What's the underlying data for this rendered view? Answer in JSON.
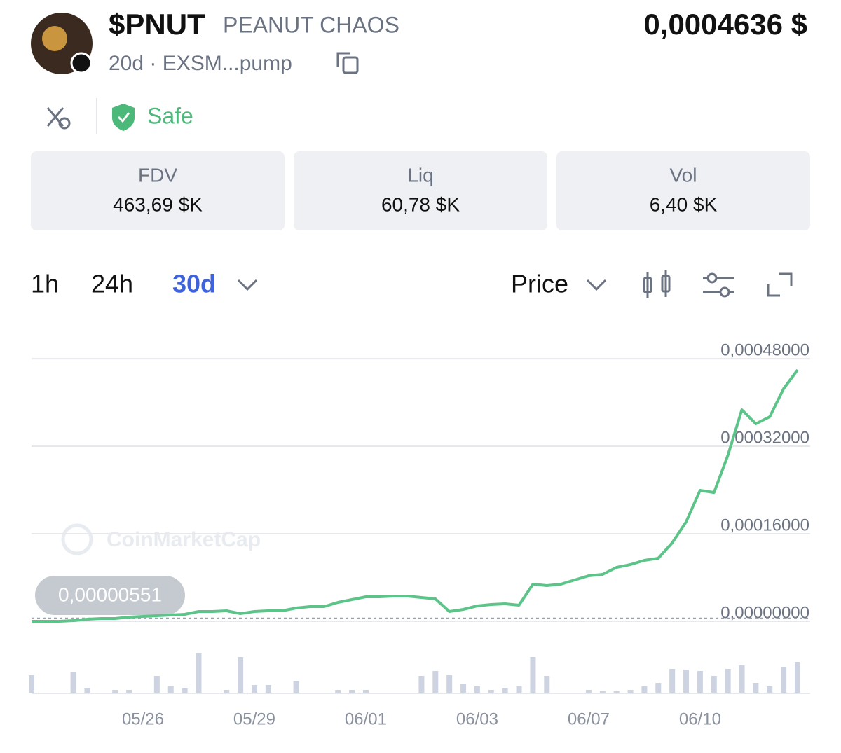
{
  "header": {
    "symbol": "$PNUT",
    "name": "PEANUT CHAOS",
    "meta": "20d · EXSM...pump",
    "price": "0,0004636 $",
    "safety": "Safe"
  },
  "stats": [
    {
      "label": "FDV",
      "value": "463,69 $K"
    },
    {
      "label": "Liq",
      "value": "60,78 $K"
    },
    {
      "label": "Vol",
      "value": "6,40 $K"
    }
  ],
  "tabs": [
    "1h",
    "24h",
    "30d"
  ],
  "active_tab": 2,
  "metric": "Price",
  "chart_data": {
    "type": "line",
    "watermark": "CoinMarketCap",
    "categories": [
      null,
      null,
      null,
      null,
      null,
      null,
      null,
      null,
      "05/26",
      null,
      null,
      null,
      null,
      null,
      null,
      null,
      "05/29",
      null,
      null,
      null,
      null,
      null,
      null,
      null,
      "06/01",
      null,
      null,
      null,
      null,
      null,
      null,
      null,
      "06/03",
      null,
      null,
      null,
      null,
      null,
      null,
      null,
      "06/07",
      null,
      null,
      null,
      null,
      null,
      null,
      null,
      "06/10",
      null,
      null,
      null,
      null,
      null,
      null,
      null
    ],
    "series": [
      {
        "name": "Price",
        "color": "#5cc489",
        "values": [
          0,
          0,
          0,
          1.3e-06,
          3.8e-06,
          5.1e-06,
          5.1e-06,
          7.7e-06,
          9e-06,
          1.02e-05,
          1.15e-05,
          1.28e-05,
          1.79e-05,
          1.79e-05,
          1.92e-05,
          1.41e-05,
          1.79e-05,
          1.92e-05,
          1.92e-05,
          2.43e-05,
          2.69e-05,
          2.69e-05,
          3.46e-05,
          3.97e-05,
          4.48e-05,
          4.48e-05,
          4.61e-05,
          4.61e-05,
          4.35e-05,
          4.1e-05,
          1.79e-05,
          2.18e-05,
          2.82e-05,
          3.07e-05,
          3.2e-05,
          2.94e-05,
          6.78e-05,
          6.53e-05,
          6.78e-05,
          7.55e-05,
          8.32e-05,
          8.58e-05,
          9.86e-05,
          0.0001037,
          0.0001114,
          0.0001152,
          0.0001434,
          0.0001818,
          0.0002394,
          0.0002355,
          0.0003034,
          0.0003866,
          0.000361,
          0.0003738,
          0.000425,
          0.0004595
        ]
      }
    ],
    "ylim": [
      0,
      0.000507
    ],
    "yticks": [
      {
        "value": 0,
        "label": "0,00000000"
      },
      {
        "value": 0.00016,
        "label": "0,00016000"
      },
      {
        "value": 0.00032,
        "label": "0,00032000"
      },
      {
        "value": 0.00048,
        "label": "0,00048000"
      }
    ],
    "grid": true,
    "start_marker": {
      "value": 5.51e-06,
      "label": "0,00000551"
    },
    "volume": {
      "color": "#cdd3e0",
      "ylim": [
        0,
        60
      ],
      "values": [
        26,
        0,
        0,
        30,
        8,
        0,
        5,
        5,
        0,
        25,
        10,
        8,
        58,
        0,
        5,
        52,
        12,
        12,
        0,
        18,
        0,
        0,
        5,
        5,
        5,
        0,
        0,
        0,
        25,
        32,
        26,
        14,
        10,
        5,
        8,
        10,
        52,
        25,
        0,
        0,
        5,
        3,
        3,
        5,
        10,
        15,
        35,
        34,
        32,
        25,
        35,
        40,
        15,
        10,
        38,
        45
      ]
    }
  }
}
